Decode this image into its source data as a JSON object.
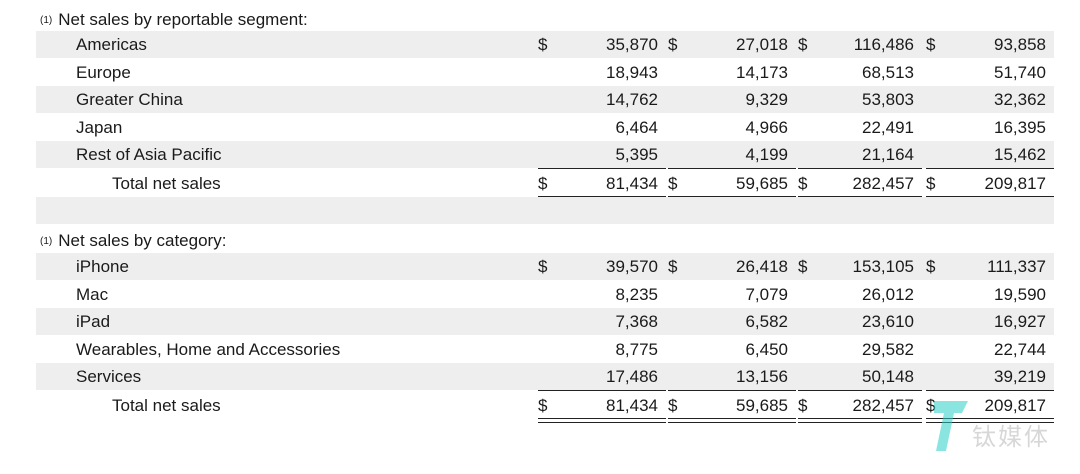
{
  "segment": {
    "header_marker": "(1)",
    "header": "Net sales by reportable segment:",
    "rows": [
      {
        "label": "Americas",
        "dollar": "$",
        "values": [
          "35,870",
          "27,018",
          "116,486",
          "93,858"
        ]
      },
      {
        "label": "Europe",
        "dollar": "",
        "values": [
          "18,943",
          "14,173",
          "68,513",
          "51,740"
        ]
      },
      {
        "label": "Greater China",
        "dollar": "",
        "values": [
          "14,762",
          "9,329",
          "53,803",
          "32,362"
        ]
      },
      {
        "label": "Japan",
        "dollar": "",
        "values": [
          "6,464",
          "4,966",
          "22,491",
          "16,395"
        ]
      },
      {
        "label": "Rest of Asia Pacific",
        "dollar": "",
        "values": [
          "5,395",
          "4,199",
          "21,164",
          "15,462"
        ]
      }
    ],
    "total": {
      "label": "Total net sales",
      "dollar": "$",
      "values": [
        "81,434",
        "59,685",
        "282,457",
        "209,817"
      ]
    }
  },
  "category": {
    "header_marker": "(1)",
    "header": "Net sales by category:",
    "rows": [
      {
        "label": "iPhone",
        "dollar": "$",
        "values": [
          "39,570",
          "26,418",
          "153,105",
          "111,337"
        ]
      },
      {
        "label": "Mac",
        "dollar": "",
        "values": [
          "8,235",
          "7,079",
          "26,012",
          "19,590"
        ]
      },
      {
        "label": "iPad",
        "dollar": "",
        "values": [
          "7,368",
          "6,582",
          "23,610",
          "16,927"
        ]
      },
      {
        "label": "Wearables, Home and Accessories",
        "dollar": "",
        "values": [
          "8,775",
          "6,450",
          "29,582",
          "22,744"
        ]
      },
      {
        "label": "Services",
        "dollar": "",
        "values": [
          "17,486",
          "13,156",
          "50,148",
          "39,219"
        ]
      }
    ],
    "total": {
      "label": "Total net sales",
      "dollar": "$",
      "values": [
        "81,434",
        "59,685",
        "282,457",
        "209,817"
      ]
    }
  },
  "watermark": {
    "text": "钛媒体",
    "icon": "tmtpost-logo-icon"
  }
}
